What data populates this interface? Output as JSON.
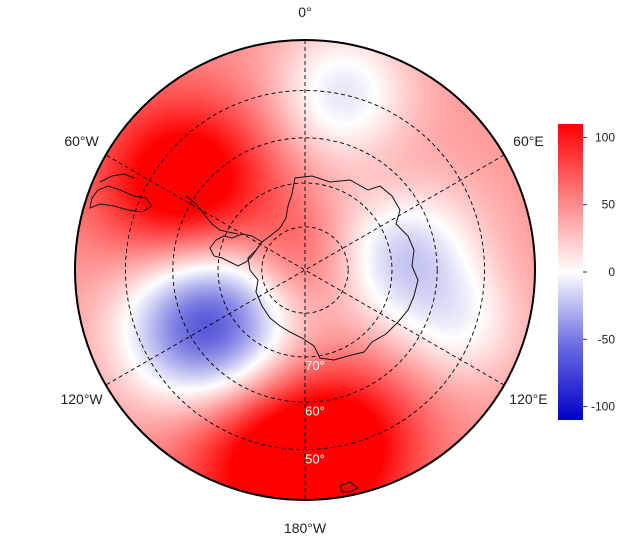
{
  "map": {
    "projection": "south-polar-stereographic",
    "colormap": {
      "low": "#0000c8",
      "mid": "#ffffff",
      "high": "#ff0000",
      "vmin": -110,
      "vmax": 110
    },
    "longitude_labels": [
      {
        "lon": 0,
        "text": "0°"
      },
      {
        "lon": 60,
        "text": "60°E"
      },
      {
        "lon": 120,
        "text": "120°E"
      },
      {
        "lon": 180,
        "text": "180°W"
      },
      {
        "lon": -120,
        "text": "120°W"
      },
      {
        "lon": -60,
        "text": "60°W"
      }
    ],
    "latitude_labels": [
      {
        "lat": -70,
        "text": "70°"
      },
      {
        "lat": -60,
        "text": "60°"
      },
      {
        "lat": -50,
        "text": "50°"
      }
    ],
    "colorbar": {
      "ticks": [
        100,
        50,
        0,
        -50,
        -100
      ],
      "tick_labels": [
        "100",
        "50",
        "0",
        "-50",
        "-100"
      ],
      "range": [
        -110,
        110
      ]
    },
    "anomalies": [
      {
        "name": "amundsen-sea-low",
        "lat": -65,
        "lon": -120,
        "value": -115,
        "spread": 11
      },
      {
        "name": "east-antarctic-low",
        "lat": -68,
        "lon": 80,
        "value": -55,
        "spread": 10
      },
      {
        "name": "atlantic-low",
        "lat": -50,
        "lon": 12,
        "value": -40,
        "spread": 9
      },
      {
        "name": "indian-ocean-low",
        "lat": -52,
        "lon": 110,
        "value": -20,
        "spread": 8
      },
      {
        "name": "drake-high",
        "lat": -57,
        "lon": -55,
        "value": 110,
        "spread": 11
      },
      {
        "name": "pacific-high",
        "lat": -48,
        "lon": -170,
        "value": 100,
        "spread": 12
      },
      {
        "name": "pacific-high-2",
        "lat": -50,
        "lon": 165,
        "value": 70,
        "spread": 10
      },
      {
        "name": "pole-high",
        "lat": -88,
        "lon": 0,
        "value": 55,
        "spread": 8
      },
      {
        "name": "dml-high",
        "lat": -62,
        "lon": 45,
        "value": 30,
        "spread": 7
      }
    ],
    "background_value": 45
  }
}
